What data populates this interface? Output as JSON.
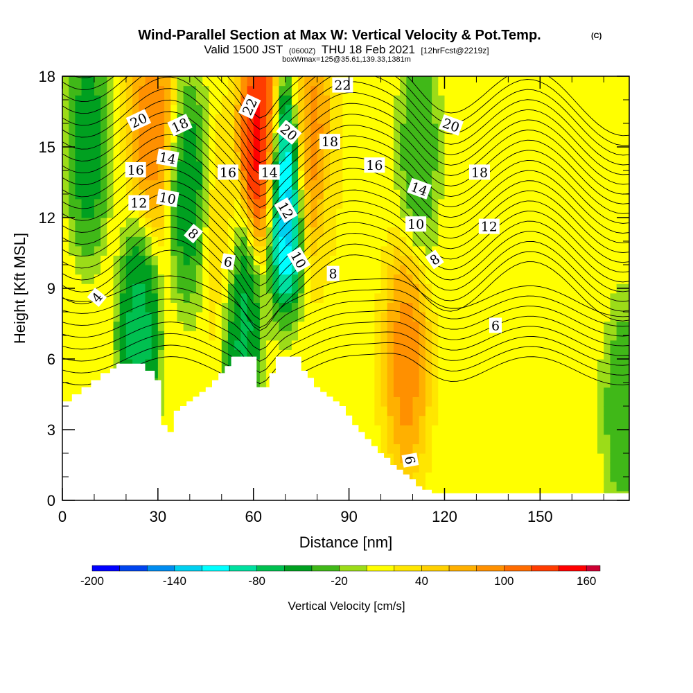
{
  "chart_data": {
    "type": "heatmap",
    "title": "Wind-Parallel Section at Max W: Vertical Velocity & Pot.Temp.",
    "copyright_mark": "(C)",
    "subtitle": "Valid 1500 JST",
    "subtitle_utc": "(0600Z)",
    "subtitle_date": "THU 18 Feb 2021",
    "subtitle_fcst": "[12hrFcst@2219z]",
    "subtitle_box": "boxWmax=125@35.61,139.33,1381m",
    "xlabel": "Distance [nm]",
    "ylabel": "Height [Kft MSL]",
    "xlim": [
      0,
      178
    ],
    "ylim": [
      0,
      18
    ],
    "xticks": [
      0,
      30,
      60,
      90,
      120,
      150
    ],
    "xtick_labels": [
      "0",
      "30",
      "60",
      "90",
      "120",
      "150"
    ],
    "yticks": [
      0,
      3,
      6,
      9,
      12,
      15,
      18
    ],
    "ytick_labels": [
      "0",
      "3",
      "6",
      "9",
      "12",
      "15",
      "18"
    ],
    "colorbar": {
      "label": "Vertical Velocity [cm/s]",
      "min": -200,
      "max": 170,
      "step": 20,
      "tick_values": [
        -200,
        -140,
        -80,
        -20,
        40,
        100,
        160
      ],
      "tick_labels": [
        "-200",
        "-140",
        "-80",
        "-20",
        "40",
        "100",
        "160"
      ],
      "colors": [
        "#0000ff",
        "#0044ee",
        "#008cf0",
        "#00d0f0",
        "#00ffff",
        "#00e0a0",
        "#00c050",
        "#00a020",
        "#40b818",
        "#9cdc18",
        "#ffff00",
        "#ffe600",
        "#ffd000",
        "#ffb000",
        "#ff9000",
        "#ff6c00",
        "#ff3c00",
        "#ff0000",
        "#cc0033",
        "#a00066",
        "#660099"
      ]
    },
    "contour_labels": [
      "4",
      "6",
      "6",
      "6",
      "8",
      "8",
      "8",
      "10",
      "10",
      "10",
      "12",
      "12",
      "12",
      "14",
      "14",
      "14",
      "16",
      "16",
      "16",
      "18",
      "18",
      "18",
      "20",
      "20",
      "20",
      "22",
      "22"
    ],
    "terrain_profile": {
      "x": [
        0,
        3,
        6,
        9,
        12,
        15,
        17,
        20,
        23,
        26,
        29,
        31,
        33,
        35,
        37,
        39,
        41,
        43,
        45,
        47,
        49,
        51,
        53,
        56,
        59,
        61,
        63,
        65,
        67,
        70,
        73,
        75,
        77,
        79,
        81,
        83,
        85,
        87,
        89,
        91,
        93,
        95,
        97,
        99,
        101,
        103,
        105,
        107,
        109,
        111,
        113,
        116,
        120,
        130,
        140,
        150,
        160,
        170,
        178
      ],
      "height": [
        4.2,
        4.5,
        4.8,
        5.1,
        5.4,
        5.6,
        5.8,
        5.8,
        5.8,
        5.5,
        5.1,
        3.2,
        2.9,
        3.8,
        4.0,
        4.2,
        4.4,
        4.6,
        4.8,
        5.1,
        5.4,
        5.7,
        6.1,
        6.1,
        6.1,
        4.8,
        4.8,
        5.4,
        6.1,
        6.1,
        6.1,
        5.5,
        5.2,
        4.8,
        4.6,
        4.4,
        4.2,
        4.0,
        3.6,
        3.2,
        2.9,
        2.6,
        2.3,
        2.0,
        1.8,
        1.5,
        1.3,
        1.1,
        0.9,
        0.6,
        0.45,
        0.3,
        0.3,
        0.3,
        0.3,
        0.3,
        0.3,
        0.3,
        0.5
      ]
    },
    "vertical_velocity_features": [
      {
        "x": 8,
        "height": 15,
        "w": -60
      },
      {
        "x": 28,
        "height": 16,
        "w": 100
      },
      {
        "x": 24,
        "height": 7,
        "w": -80
      },
      {
        "x": 40,
        "height": 13,
        "w": -60
      },
      {
        "x": 50,
        "height": 11,
        "w": 40
      },
      {
        "x": 62,
        "height": 15,
        "w": 170
      },
      {
        "x": 56,
        "height": 8,
        "w": -80
      },
      {
        "x": 70,
        "height": 13,
        "w": -160
      },
      {
        "x": 78,
        "height": 15,
        "w": 100
      },
      {
        "x": 86,
        "height": 11,
        "w": 20
      },
      {
        "x": 108,
        "height": 6,
        "w": 100
      },
      {
        "x": 112,
        "height": 15,
        "w": -40
      },
      {
        "x": 128,
        "height": 10,
        "w": 0
      },
      {
        "x": 165,
        "height": 12,
        "w": 20
      },
      {
        "x": 176,
        "height": 4,
        "w": -40
      }
    ]
  }
}
